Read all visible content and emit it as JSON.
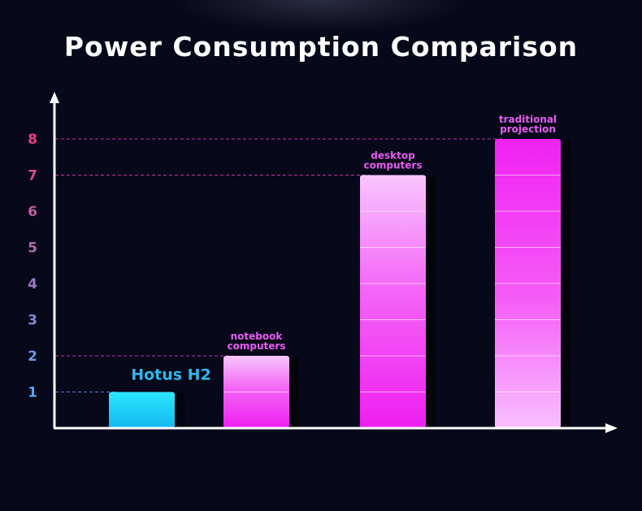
{
  "page": {
    "title": "Power Consumption Comparison",
    "background": "#07081a"
  },
  "chart_data": {
    "type": "bar",
    "title": "Power Consumption Comparison",
    "xlabel": "",
    "ylabel": "",
    "ylim": [
      0,
      8
    ],
    "y_ticks": [
      1,
      2,
      3,
      4,
      5,
      6,
      7,
      8
    ],
    "categories": [
      "Hotus H2",
      "notebook computers",
      "desktop computers",
      "traditional projection"
    ],
    "values": [
      1,
      2,
      7,
      8
    ],
    "label_lines": [
      [
        "Hotus H2"
      ],
      [
        "notebook",
        "computers"
      ],
      [
        "desktop",
        "computers"
      ],
      [
        "traditional",
        "projection"
      ]
    ],
    "colors": {
      "highlight": "#1fd3f5",
      "others": "#f01ff0",
      "tick_low": "#5aa8f0",
      "tick_high": "#f03c86",
      "guide_pink": "#c2359e",
      "guide_blue": "#5a7fe0"
    },
    "gridlines": false,
    "legend": "none"
  }
}
